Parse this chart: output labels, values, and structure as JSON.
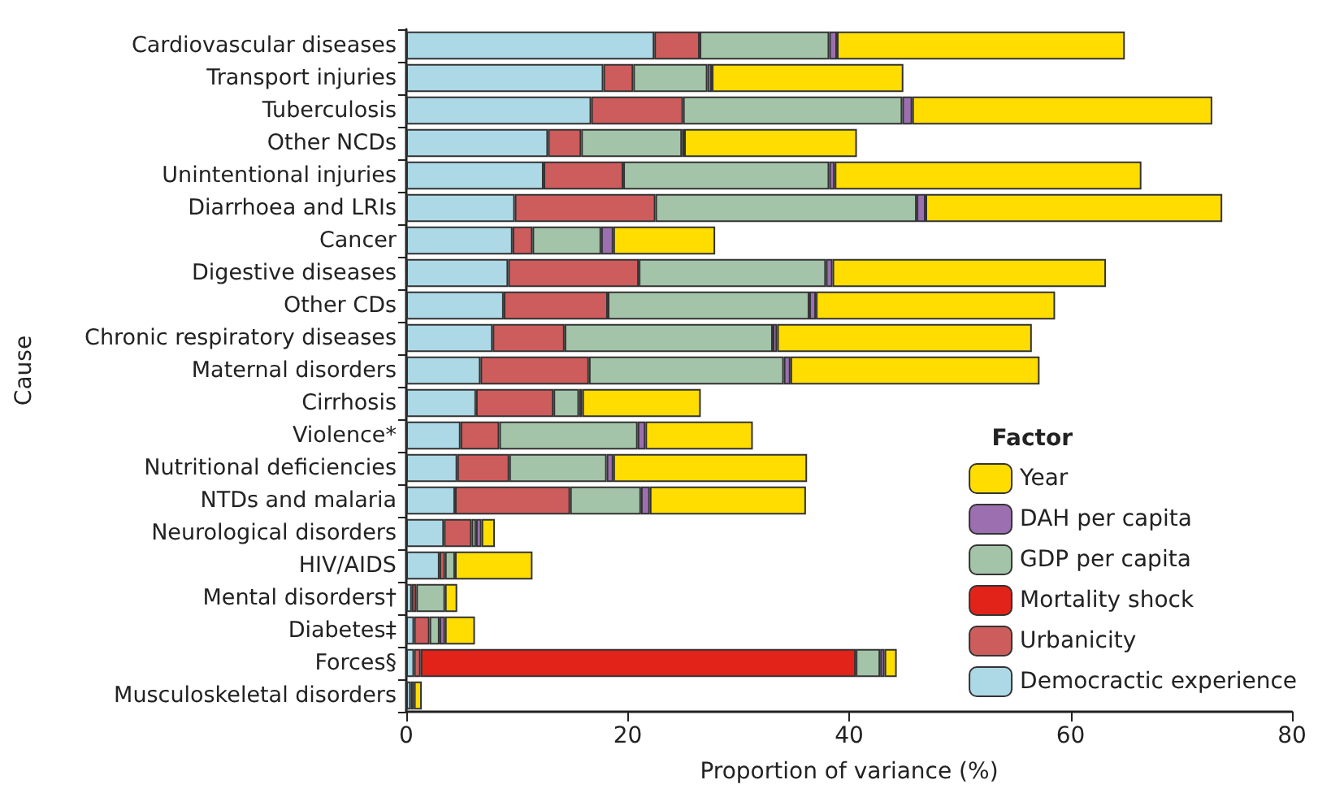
{
  "chart_data": {
    "type": "bar",
    "orientation": "horizontal",
    "stacked": true,
    "xlabel": "Proportion of variance (%)",
    "ylabel": "Cause",
    "legend_title": "Factor",
    "legend": "bottom right",
    "xlim": [
      0,
      80
    ],
    "xticks": [
      0,
      20,
      40,
      60,
      80
    ],
    "categories": [
      "Cardiovascular diseases",
      "Transport injuries",
      "Tuberculosis",
      "Other NCDs",
      "Unintentional injuries",
      "Diarrhoea and LRIs",
      "Cancer",
      "Digestive diseases",
      "Other CDs",
      "Chronic respiratory diseases",
      "Maternal disorders",
      "Cirrhosis",
      "Violence*",
      "Nutritional deficiencies",
      "NTDs and malaria",
      "Neurological disorders",
      "HIV/AIDS",
      "Mental disorders†",
      "Diabetes‡",
      "Forces§",
      "Musculoskeletal disorders"
    ],
    "series": [
      {
        "name": "Democractic experience",
        "color": "#add8e6",
        "values": [
          22.4,
          17.8,
          16.7,
          12.8,
          12.4,
          9.8,
          9.6,
          9.2,
          8.8,
          7.8,
          6.7,
          6.3,
          4.9,
          4.6,
          4.4,
          3.4,
          3.0,
          0.5,
          0.7,
          0.7,
          0.4
        ]
      },
      {
        "name": "Urbanicity",
        "color": "#cd5c5c",
        "values": [
          4.1,
          2.7,
          8.3,
          3.0,
          7.2,
          12.7,
          1.8,
          11.8,
          9.4,
          6.5,
          9.8,
          7.0,
          3.5,
          4.7,
          10.4,
          2.5,
          0.5,
          0.4,
          1.4,
          0.6,
          null
        ]
      },
      {
        "name": "Mortality shock",
        "color": "#e2231a",
        "values": [
          0,
          0,
          0,
          0,
          0,
          0,
          0,
          0,
          0,
          0,
          0,
          0,
          0,
          0,
          0,
          0,
          0,
          0,
          0,
          39.3,
          0
        ]
      },
      {
        "name": "GDP per capita",
        "color": "#a3c4a9",
        "values": [
          11.7,
          6.7,
          19.8,
          9.1,
          18.6,
          23.6,
          6.2,
          16.9,
          18.2,
          18.8,
          17.6,
          2.3,
          12.5,
          8.8,
          6.4,
          0.4,
          0.9,
          2.6,
          0.9,
          2.2,
          0.3
        ]
      },
      {
        "name": "DAH per capita",
        "color": "#9b6fb0",
        "values": [
          0.7,
          0.4,
          0.9,
          0.2,
          0.5,
          0.8,
          1.1,
          0.6,
          0.6,
          0.4,
          0.6,
          0.3,
          0.7,
          0.6,
          0.8,
          0.5,
          0,
          0,
          0.5,
          0.4,
          0
        ]
      },
      {
        "name": "Year",
        "color": "#ffdd00",
        "values": [
          26.0,
          17.3,
          27.1,
          15.6,
          27.7,
          26.8,
          9.2,
          24.7,
          21.6,
          23.0,
          22.5,
          10.7,
          9.7,
          17.5,
          14.1,
          1.2,
          7.0,
          1.1,
          2.7,
          1.1,
          0.7
        ]
      }
    ]
  }
}
